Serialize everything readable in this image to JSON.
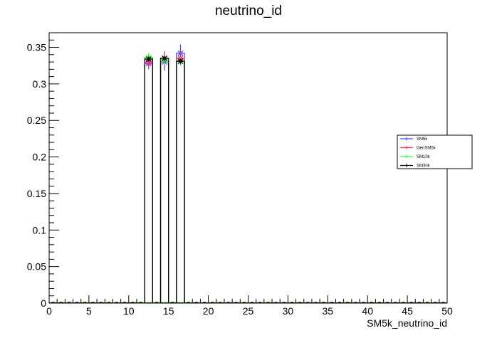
{
  "chart_data": {
    "type": "line",
    "title": "neutrino_id",
    "xlabel": "SM5k_neutrino_id",
    "ylabel": "",
    "xlim": [
      0,
      50
    ],
    "ylim": [
      0,
      0.37
    ],
    "x_ticks": [
      0,
      5,
      10,
      15,
      20,
      25,
      30,
      35,
      40,
      45,
      50
    ],
    "x_tick_labels": [
      "0",
      "5",
      "10",
      "15",
      "20",
      "25",
      "30",
      "35",
      "40",
      "45",
      "50"
    ],
    "y_ticks": [
      0,
      0.05,
      0.1,
      0.15,
      0.2,
      0.25,
      0.3,
      0.35
    ],
    "y_tick_labels": [
      "0",
      "0.05",
      "0.1",
      "0.15",
      "0.2",
      "0.25",
      "0.3",
      "0.35"
    ],
    "bin_width": 1,
    "bins_low_edges": [
      12,
      14,
      16
    ],
    "legend_position": "right",
    "series": [
      {
        "name": "SM5k",
        "color": "#4a4aff",
        "values": [
          0.328,
          0.33,
          0.342
        ],
        "errors": [
          0.008,
          0.012,
          0.012
        ]
      },
      {
        "name": "GenSM5k",
        "color": "#ff2a6a",
        "values": [
          0.33,
          0.335,
          0.335
        ],
        "errors": [
          0.01,
          0.01,
          0.01
        ]
      },
      {
        "name": "SM10k",
        "color": "#33ff33",
        "values": [
          0.336,
          0.333,
          0.331
        ],
        "errors": [
          0.006,
          0.006,
          0.006
        ]
      },
      {
        "name": "SM30k",
        "color": "#000000",
        "values": [
          0.334,
          0.335,
          0.331
        ],
        "errors": [
          0.003,
          0.003,
          0.003
        ]
      }
    ]
  }
}
